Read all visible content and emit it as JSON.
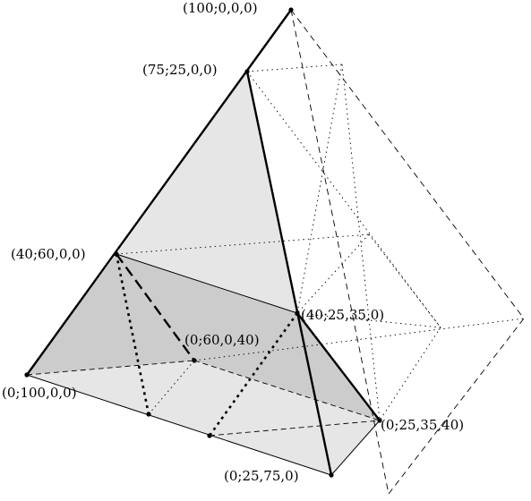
{
  "labels": {
    "p100_0_0_0": "(100;0,0,0)",
    "p75_25_0_0": "(75;25,0,0)",
    "p40_60_0_0": "(40;60,0,0)",
    "p40_25_35_0": "(40;25,35,0)",
    "p0_60_0_40": "(0;60,0,40)",
    "p0_100_0_0": "(0;100,0,0)",
    "p0_25_35_40": "(0;25,35,40)",
    "p0_25_75_0": "(0;25,75,0)"
  },
  "colors": {
    "face_light": "#e6e6e6",
    "face_dark": "#cccccc",
    "stroke": "#000000"
  }
}
